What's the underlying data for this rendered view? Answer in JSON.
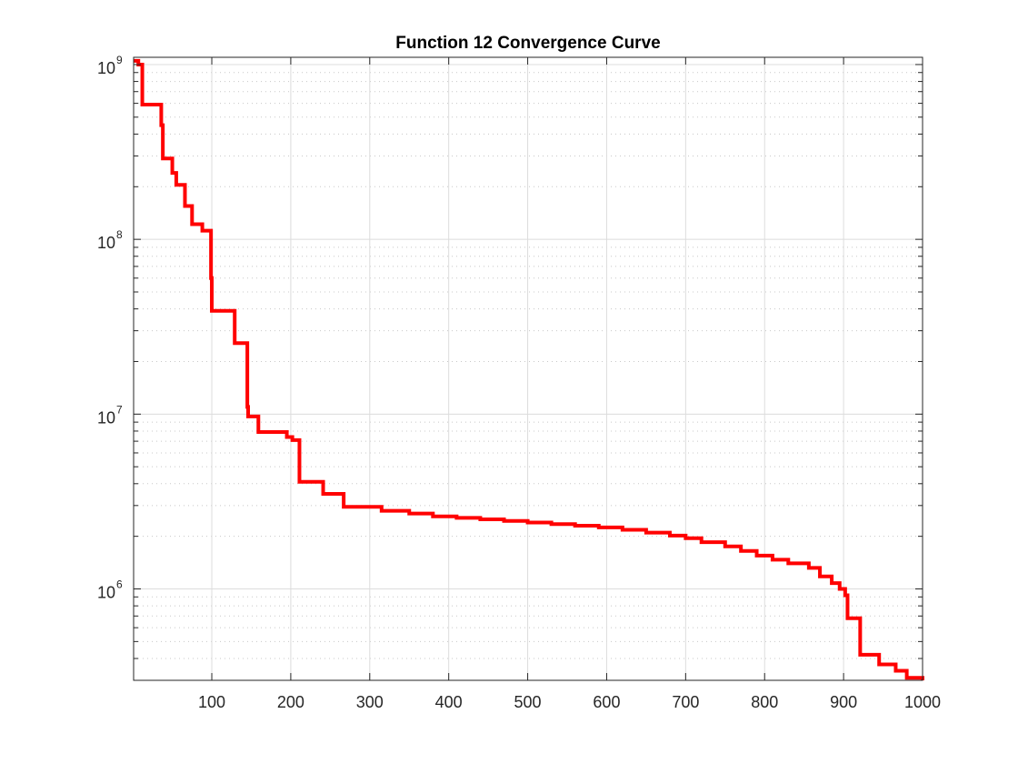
{
  "chart_data": {
    "type": "line",
    "title": "Function 12 Convergence Curve",
    "xlabel": "",
    "ylabel": "",
    "xlim": [
      1,
      1000
    ],
    "ylim": [
      300000,
      1100000000
    ],
    "yscale": "log",
    "grid": true,
    "minor_grid_y": true,
    "line_style": "step",
    "x_ticks": [
      100,
      200,
      300,
      400,
      500,
      600,
      700,
      800,
      900,
      1000
    ],
    "x_tick_labels": [
      "100",
      "200",
      "300",
      "400",
      "500",
      "600",
      "700",
      "800",
      "900",
      "1000"
    ],
    "y_ticks": [
      1000000,
      10000000,
      100000000,
      1000000000
    ],
    "y_tick_labels": [
      {
        "base": "10",
        "exp": "6"
      },
      {
        "base": "10",
        "exp": "7"
      },
      {
        "base": "10",
        "exp": "8"
      },
      {
        "base": "10",
        "exp": "9"
      }
    ],
    "series": [
      {
        "color": "#ff0000",
        "x": [
          1,
          7,
          12,
          36,
          38,
          50,
          55,
          66,
          75,
          88,
          99,
          100,
          129,
          145,
          146,
          159,
          195,
          202,
          211,
          241,
          267,
          315,
          350,
          380,
          410,
          440,
          470,
          500,
          530,
          560,
          590,
          620,
          650,
          680,
          700,
          720,
          750,
          770,
          790,
          810,
          830,
          856,
          870,
          885,
          895,
          902,
          905,
          921,
          945,
          966,
          980,
          1000
        ],
        "y": [
          1050000000,
          1000000000,
          590000000,
          450000000,
          290000000,
          240000000,
          205000000,
          155000000,
          122000000,
          112000000,
          60000000,
          39000000,
          25500000,
          11000000,
          9700000,
          7900000,
          7400000,
          7100000,
          4100000,
          3500000,
          2950000,
          2800000,
          2700000,
          2600000,
          2550000,
          2500000,
          2450000,
          2400000,
          2350000,
          2300000,
          2250000,
          2180000,
          2100000,
          2020000,
          1950000,
          1850000,
          1750000,
          1650000,
          1550000,
          1470000,
          1400000,
          1320000,
          1180000,
          1080000,
          1000000,
          920000,
          680000,
          420000,
          370000,
          340000,
          310000,
          300000
        ]
      }
    ]
  }
}
